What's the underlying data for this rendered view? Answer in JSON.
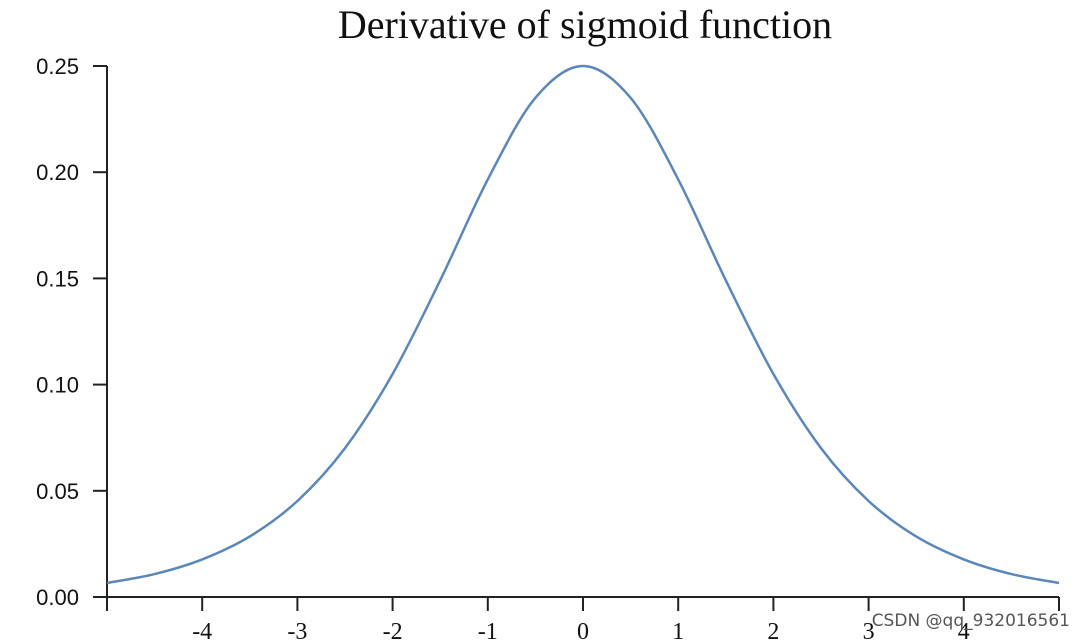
{
  "chart_data": {
    "type": "line",
    "title": "Derivative of sigmoid function",
    "xlabel": "",
    "ylabel": "",
    "xlim": [
      -5,
      5
    ],
    "ylim": [
      0,
      0.25
    ],
    "x_ticks": [
      -4,
      -3,
      -2,
      -1,
      0,
      1,
      2,
      3,
      4
    ],
    "y_ticks": [
      0.0,
      0.05,
      0.1,
      0.15,
      0.2,
      0.25
    ],
    "x_tick_labels": [
      "-4",
      "-3",
      "-2",
      "-1",
      "0",
      "1",
      "2",
      "3",
      "4"
    ],
    "y_tick_labels": [
      "0.00",
      "0.05",
      "0.10",
      "0.15",
      "0.20",
      "0.25"
    ],
    "grid": false,
    "series": [
      {
        "color": "#5b86b8",
        "x": [
          -5,
          -4.5,
          -4,
          -3.5,
          -3,
          -2.5,
          -2,
          -1.5,
          -1,
          -0.5,
          0,
          0.5,
          1,
          1.5,
          2,
          2.5,
          3,
          3.5,
          4,
          4.5,
          5
        ],
        "y": [
          0.0066,
          0.0108,
          0.0177,
          0.0285,
          0.0452,
          0.0701,
          0.105,
          0.1491,
          0.1966,
          0.235,
          0.25,
          0.235,
          0.1966,
          0.1491,
          0.105,
          0.0701,
          0.0452,
          0.0285,
          0.0177,
          0.0108,
          0.0066
        ]
      }
    ]
  },
  "watermark": "CSDN @qq_932016561"
}
